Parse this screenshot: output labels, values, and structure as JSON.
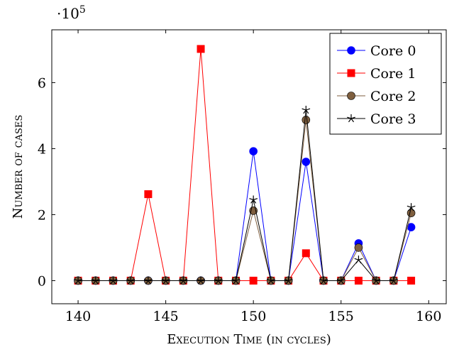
{
  "chart_data": {
    "type": "line",
    "xlabel": "Execution Time (in cycles)",
    "ylabel": "Number of cases",
    "y_multiplier_base": "·10",
    "y_multiplier_exp": "5",
    "xlim": [
      138.5,
      161
    ],
    "ylim": [
      -0.7,
      7.6
    ],
    "x_ticks": [
      140,
      145,
      150,
      155,
      160
    ],
    "y_ticks": [
      0,
      2,
      4,
      6
    ],
    "grid": false,
    "legend_position": "top-right",
    "x": [
      140,
      141,
      142,
      143,
      144,
      145,
      146,
      147,
      148,
      149,
      150,
      151,
      152,
      153,
      154,
      155,
      156,
      157,
      158,
      159
    ],
    "series": [
      {
        "name": "Core 0",
        "color": "#0000ff",
        "marker": "circle",
        "values": [
          0,
          0,
          0,
          0,
          0,
          0,
          0,
          0,
          0,
          0,
          3.92,
          0,
          0,
          3.6,
          0,
          0,
          1.13,
          0,
          0,
          1.62
        ]
      },
      {
        "name": "Core 1",
        "color": "#ff0000",
        "marker": "square",
        "values": [
          0,
          0,
          0,
          0,
          2.62,
          0,
          0,
          7.02,
          0,
          0,
          0,
          0,
          0,
          0.83,
          0,
          0,
          0,
          0,
          0,
          0
        ]
      },
      {
        "name": "Core 2",
        "color": "#7f5f3f",
        "marker": "circle",
        "values": [
          0,
          0,
          0,
          0,
          0,
          0,
          0,
          0,
          0,
          0,
          2.12,
          0,
          0,
          4.87,
          0,
          0,
          1.0,
          0,
          0,
          2.05
        ]
      },
      {
        "name": "Core 3",
        "color": "#000000",
        "marker": "star",
        "values": [
          0,
          0,
          0,
          0,
          0,
          0,
          0,
          0,
          0,
          0,
          2.45,
          0,
          0,
          5.17,
          0,
          0,
          0.63,
          0,
          0,
          2.22
        ]
      }
    ]
  }
}
